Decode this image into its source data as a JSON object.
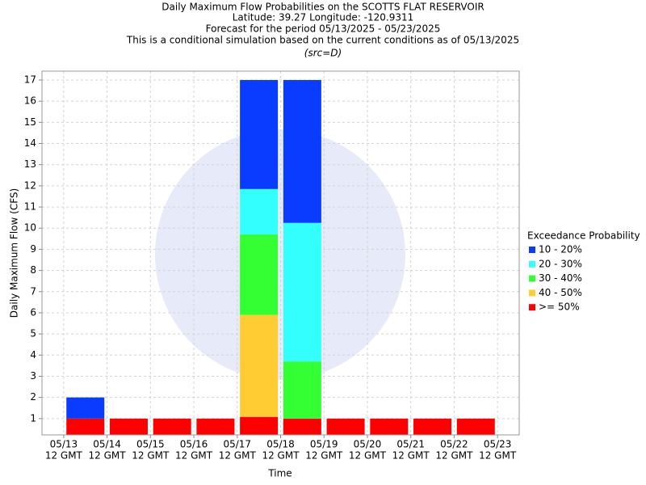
{
  "chart_data": {
    "type": "stacked_bar",
    "title": [
      "Daily Maximum Flow Probabilities on the SCOTTS FLAT RESERVOIR",
      "Latitude: 39.27 Longitude: -120.9311",
      "Forecast for the period 05/13/2025 - 05/23/2025",
      "This is a conditional simulation based on the current conditions as of 05/13/2025"
    ],
    "subtitle": "(src=D)",
    "x_label": "Time",
    "y_label": "Daily Maximum Flow (CFS)",
    "x_tick_labels": [
      [
        "05/13",
        "12 GMT"
      ],
      [
        "05/14",
        "12 GMT"
      ],
      [
        "05/15",
        "12 GMT"
      ],
      [
        "05/16",
        "12 GMT"
      ],
      [
        "05/17",
        "12 GMT"
      ],
      [
        "05/18",
        "12 GMT"
      ],
      [
        "05/19",
        "12 GMT"
      ],
      [
        "05/20",
        "12 GMT"
      ],
      [
        "05/21",
        "12 GMT"
      ],
      [
        "05/22",
        "12 GMT"
      ],
      [
        "05/23",
        "12 GMT"
      ]
    ],
    "legend_title": "Exceedance Probability",
    "series": [
      {
        "name": ">= 50%",
        "color": "#ff0000",
        "values": [
          1,
          1,
          1,
          1,
          1.08,
          1,
          1,
          1,
          1,
          1
        ]
      },
      {
        "name": "40 - 50%",
        "color": "#ffcc33",
        "values": [
          0,
          0,
          0,
          0,
          4.82,
          0,
          0,
          0,
          0,
          0
        ]
      },
      {
        "name": "30 - 40%",
        "color": "#33ff33",
        "values": [
          0,
          0,
          0,
          0,
          3.8,
          2.7,
          0,
          0,
          0,
          0
        ]
      },
      {
        "name": "20 - 30%",
        "color": "#33ffff",
        "values": [
          0,
          0,
          0,
          0,
          2.15,
          6.55,
          0,
          0,
          0,
          0
        ]
      },
      {
        "name": "10 - 20%",
        "color": "#0a3cff",
        "values": [
          1,
          0,
          0,
          0,
          5.15,
          6.75,
          0,
          0,
          0,
          0
        ]
      }
    ],
    "ylim": [
      0.23,
      17.42
    ],
    "yticks": [
      1,
      2,
      3,
      4,
      5,
      6,
      7,
      8,
      9,
      10,
      11,
      12,
      13,
      14,
      15,
      16,
      17
    ],
    "grid": true
  }
}
